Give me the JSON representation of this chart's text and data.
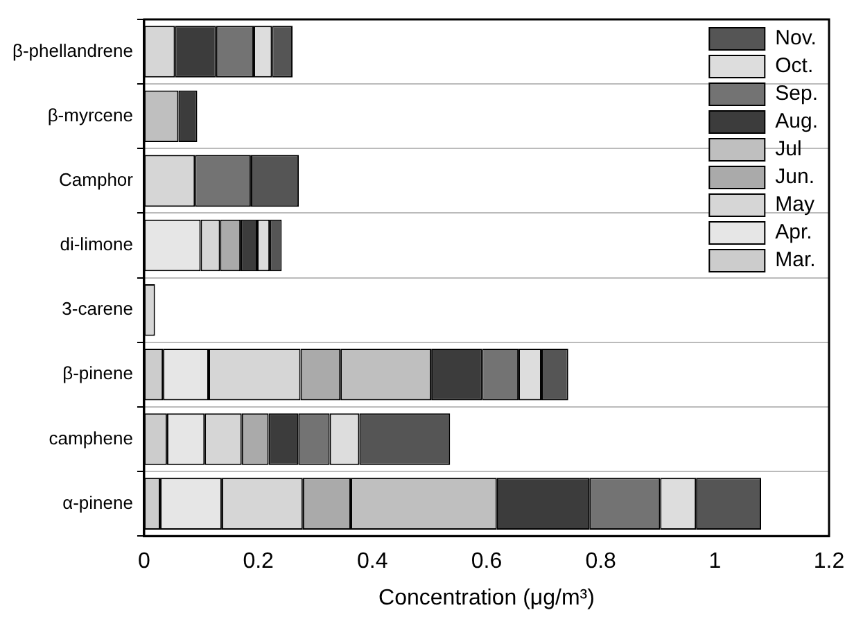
{
  "chart_data": {
    "type": "bar",
    "orientation": "horizontal",
    "stacked": true,
    "xlabel": "Concentration (μg/m³)",
    "categories": [
      "β-phellandrene",
      "β-myrcene",
      "Camphor",
      "di-limone",
      "3-carene",
      "β-pinene",
      "camphene",
      "α-pinene"
    ],
    "xlim": [
      0,
      1.2
    ],
    "xticks": [
      0,
      0.2,
      0.4,
      0.6,
      0.8,
      1,
      1.2
    ],
    "grid": "y",
    "legend": "top right",
    "series": [
      {
        "name": "Mar.",
        "color": "#cccccc",
        "values": [
          null,
          null,
          null,
          null,
          null,
          0.033,
          0.04,
          0.028
        ]
      },
      {
        "name": "Apr.",
        "color": "#e6e6e6",
        "values": [
          null,
          null,
          null,
          0.099,
          null,
          0.08,
          0.066,
          0.108
        ]
      },
      {
        "name": "May",
        "color": "#d6d6d6",
        "values": [
          0.054,
          null,
          0.089,
          0.034,
          0.019,
          0.161,
          0.065,
          0.142
        ]
      },
      {
        "name": "Jun.",
        "color": "#aaaaaa",
        "values": [
          null,
          null,
          null,
          0.036,
          null,
          0.07,
          0.047,
          0.084
        ]
      },
      {
        "name": "Jul",
        "color": "#bfbfbf",
        "values": [
          null,
          0.06,
          null,
          null,
          null,
          0.159,
          null,
          0.256
        ]
      },
      {
        "name": "Aug.",
        "color": "#3c3c3c",
        "values": [
          0.072,
          0.033,
          null,
          0.029,
          null,
          0.089,
          0.052,
          0.162
        ]
      },
      {
        "name": "Sep.",
        "color": "#737373",
        "values": [
          0.066,
          null,
          0.098,
          null,
          null,
          0.064,
          0.055,
          0.124
        ]
      },
      {
        "name": "Oct.",
        "color": "#dddddd",
        "values": [
          0.032,
          null,
          null,
          0.022,
          null,
          0.04,
          0.052,
          0.063
        ]
      },
      {
        "name": "Nov.",
        "color": "#555555",
        "values": [
          0.036,
          null,
          0.084,
          0.021,
          null,
          0.047,
          0.159,
          0.114
        ]
      }
    ]
  }
}
